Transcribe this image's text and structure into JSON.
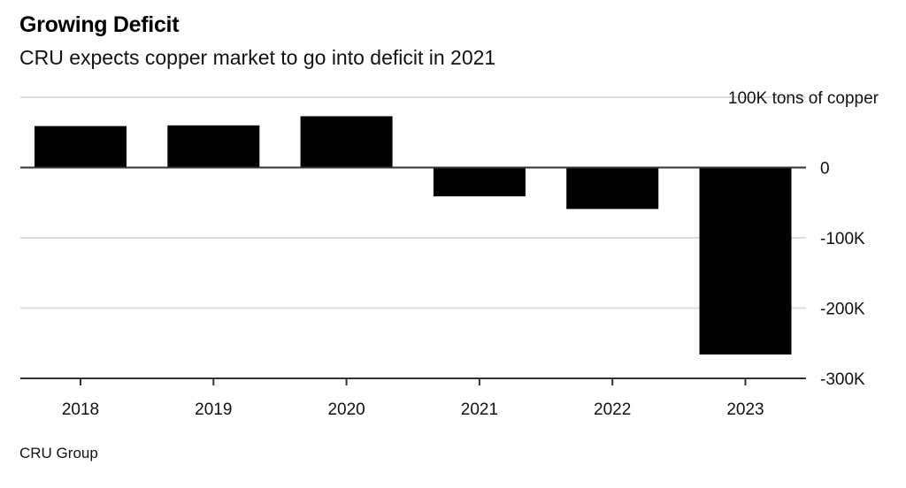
{
  "chart_data": {
    "type": "bar",
    "title": "Growing Deficit",
    "subtitle": "CRU expects copper market to go into deficit in 2021",
    "source": "CRU Group",
    "unit_label": "100K tons of copper",
    "categories": [
      "2018",
      "2019",
      "2020",
      "2021",
      "2022",
      "2023"
    ],
    "values": [
      59000,
      60000,
      73000,
      -41000,
      -59000,
      -266000
    ],
    "ylim": [
      -300000,
      100000
    ],
    "yticks": [
      {
        "value": 100000,
        "label": "100K tons of copper"
      },
      {
        "value": 0,
        "label": "0"
      },
      {
        "value": -100000,
        "label": "-100K"
      },
      {
        "value": -200000,
        "label": "-200K"
      },
      {
        "value": -300000,
        "label": "-300K"
      }
    ],
    "xlabel": "",
    "ylabel": "",
    "grid": true,
    "ytick_side": "right",
    "bar_color": "#000000",
    "grid_color": "#dcdcdc",
    "axis_color": "#333333"
  }
}
